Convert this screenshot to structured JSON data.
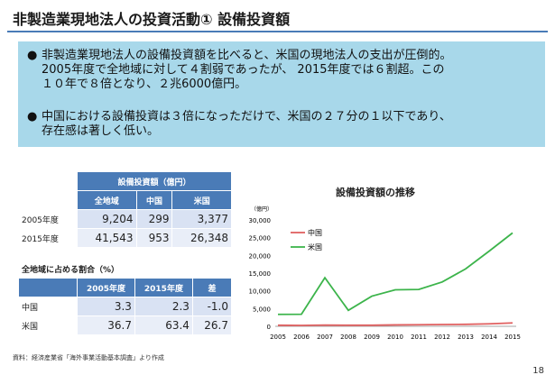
{
  "slide": {
    "title": "非製造業現地法人の投資活動① 設備投資額",
    "page_number": "18",
    "source": "資料：経済産業省「海外事業活動基本調査」より作成"
  },
  "bullets": [
    {
      "lines": [
        "非製造業現地法人の設備投資額を比べると、米国の現地法人の支出が圧倒的。",
        "2005年度で全地域に対して４割弱であったが、 2015年度では６割超。この",
        "１０年で８倍となり、２兆6000億円。"
      ]
    },
    {
      "lines": [
        "中国における設備投資は３倍になっただけで、米国の２７分の１以下であり、",
        "存在感は著しく低い。"
      ]
    }
  ],
  "table1": {
    "group_header": "設備投資額（億円）",
    "columns": [
      "全地域",
      "中国",
      "米国"
    ],
    "rows": [
      {
        "label": "2005年度",
        "values": [
          "9,204",
          "299",
          "3,377"
        ]
      },
      {
        "label": "2015年度",
        "values": [
          "41,543",
          "953",
          "26,348"
        ]
      }
    ]
  },
  "table2": {
    "title": "全地域に占める割合（%）",
    "columns": [
      "2005年度",
      "2015年度",
      "差"
    ],
    "rows": [
      {
        "label": "中国",
        "values": [
          "3.3",
          "2.3",
          "-1.0"
        ]
      },
      {
        "label": "米国",
        "values": [
          "36.7",
          "63.4",
          "26.7"
        ]
      }
    ]
  },
  "colors": {
    "accent": "#4a7bb7",
    "box": "#a8d8ea",
    "china": "#e06060",
    "usa": "#3cb44b"
  },
  "chart_data": {
    "type": "line",
    "title": "設備投資額の推移",
    "ylabel": "（億円）",
    "x": [
      2005,
      2006,
      2007,
      2008,
      2009,
      2010,
      2011,
      2012,
      2013,
      2014,
      2015
    ],
    "ylim": [
      0,
      30000
    ],
    "yticks": [
      0,
      5000,
      10000,
      15000,
      20000,
      25000,
      30000
    ],
    "ytick_labels": [
      "0",
      "5,000",
      "10,000",
      "15,000",
      "20,000",
      "25,000",
      "30,000"
    ],
    "legend_position": "top-left",
    "series": [
      {
        "name": "中国",
        "color": "#e06060",
        "values": [
          299,
          250,
          350,
          300,
          300,
          400,
          450,
          500,
          550,
          700,
          953
        ]
      },
      {
        "name": "米国",
        "color": "#3cb44b",
        "values": [
          3377,
          3400,
          13700,
          4500,
          8500,
          10300,
          10400,
          12500,
          16200,
          21200,
          26348
        ]
      }
    ]
  }
}
